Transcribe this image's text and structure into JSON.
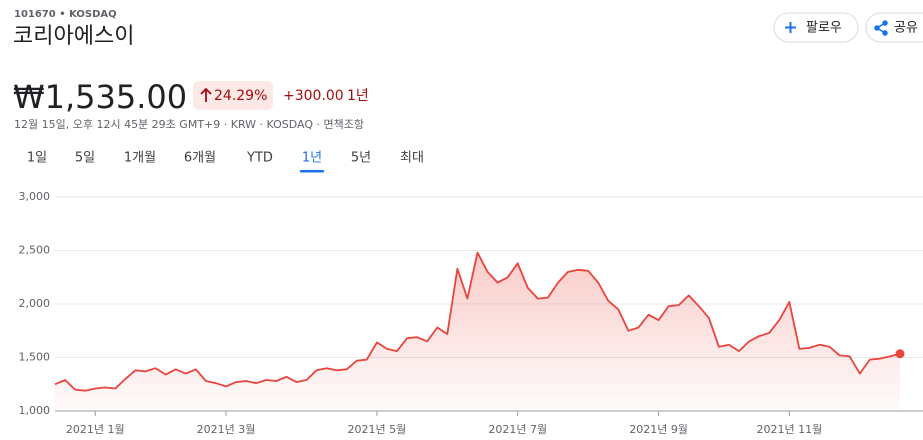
{
  "header": {
    "ticker": "101670 • KOSDAQ",
    "name": "코리아에스이",
    "follow": "팔로우",
    "share": "공유"
  },
  "quote": {
    "price": "₩1,535.00",
    "change_percent": "24.29%",
    "change": "+300.00",
    "change_period": "1년",
    "details": "12월 15일, 오후 12시 45분 29초 GMT+9 · KRW · KOSDAQ · 면책조항"
  },
  "tabs": {
    "items": [
      "1일",
      "5일",
      "1개월",
      "6개월",
      "YTD",
      "1년",
      "5년",
      "최대"
    ],
    "selected": 5
  },
  "chart_data": {
    "type": "line",
    "color": "#e8453c",
    "grid": true,
    "categories": [
      null,
      null,
      null,
      null,
      "2021년 1월",
      null,
      null,
      null,
      null,
      null,
      null,
      null,
      null,
      null,
      null,
      null,
      null,
      "2021년 3월",
      null,
      null,
      null,
      null,
      null,
      null,
      null,
      null,
      null,
      null,
      null,
      null,
      null,
      null,
      "2021년 5월",
      null,
      null,
      null,
      null,
      null,
      null,
      null,
      null,
      null,
      null,
      null,
      null,
      null,
      "2021년 7월",
      null,
      null,
      null,
      null,
      null,
      null,
      null,
      null,
      null,
      null,
      null,
      null,
      null,
      "2021년 9월",
      null,
      null,
      null,
      null,
      null,
      null,
      null,
      null,
      null,
      null,
      null,
      null,
      "2021년 11월",
      null,
      null,
      null,
      null,
      null,
      null,
      null,
      null,
      null,
      null,
      null
    ],
    "values": [
      1250,
      1290,
      1200,
      1190,
      1210,
      1220,
      1210,
      1300,
      1380,
      1370,
      1400,
      1340,
      1390,
      1350,
      1390,
      1280,
      1260,
      1230,
      1270,
      1280,
      1260,
      1290,
      1280,
      1320,
      1270,
      1290,
      1380,
      1400,
      1380,
      1390,
      1470,
      1480,
      1640,
      1580,
      1560,
      1680,
      1690,
      1650,
      1780,
      1720,
      2330,
      2050,
      2480,
      2300,
      2200,
      2250,
      2380,
      2150,
      2050,
      2060,
      2200,
      2300,
      2320,
      2310,
      2200,
      2030,
      1950,
      1750,
      1780,
      1900,
      1850,
      1980,
      1990,
      2080,
      1980,
      1870,
      1600,
      1620,
      1560,
      1650,
      1700,
      1730,
      1850,
      2020,
      1580,
      1590,
      1620,
      1600,
      1520,
      1510,
      1350,
      1480,
      1490,
      1510,
      1535
    ],
    "ylim": [
      1000,
      3000
    ],
    "yticks": [
      {
        "value": 1000,
        "label": "1,000"
      },
      {
        "value": 1500,
        "label": "1,500"
      },
      {
        "value": 2000,
        "label": "2,000"
      },
      {
        "value": 2500,
        "label": "2,500"
      },
      {
        "value": 3000,
        "label": "3,000"
      }
    ]
  }
}
